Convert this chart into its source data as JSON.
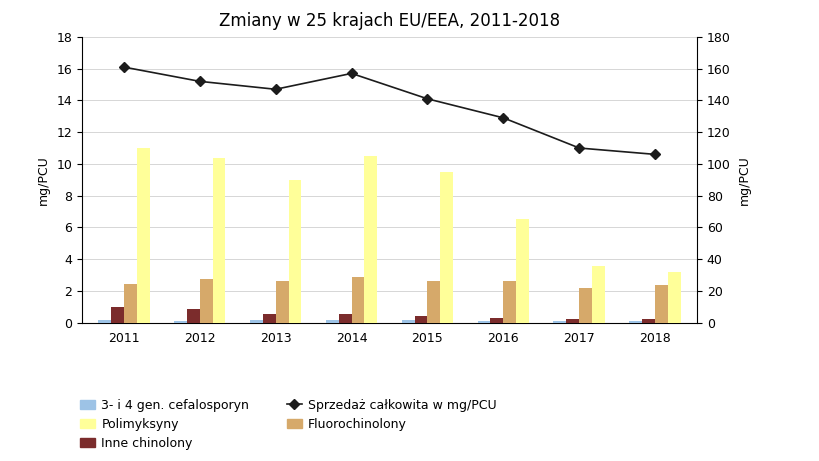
{
  "title": "Zmiany w 25 krajach EU/EEA, 2011-2018",
  "years": [
    2011,
    2012,
    2013,
    2014,
    2015,
    2016,
    2017,
    2018
  ],
  "cefalosporyn": [
    0.15,
    0.12,
    0.15,
    0.18,
    0.15,
    0.1,
    0.1,
    0.08
  ],
  "inne_chinolony": [
    1.0,
    0.85,
    0.55,
    0.55,
    0.4,
    0.3,
    0.25,
    0.22
  ],
  "fluorochinolony": [
    2.45,
    2.75,
    2.65,
    2.85,
    2.65,
    2.6,
    2.2,
    2.35
  ],
  "polimyksyny": [
    11.0,
    10.4,
    9.0,
    10.5,
    9.5,
    6.5,
    3.6,
    3.2
  ],
  "sprzedaz_calkowita": [
    161,
    152,
    147,
    157,
    141,
    129,
    110,
    106
  ],
  "bar_colors": {
    "cefalosporyn": "#9DC3E6",
    "inne_chinolony": "#7B2C2C",
    "fluorochinolony": "#D6A96A",
    "polimyksyny": "#FFFF99"
  },
  "line_color": "#1C1C1C",
  "ylabel_left": "mg/PCU",
  "ylabel_right": "mg/PCU",
  "ylim_left": [
    0,
    18
  ],
  "ylim_right": [
    0,
    180
  ],
  "yticks_left": [
    0,
    2,
    4,
    6,
    8,
    10,
    12,
    14,
    16,
    18
  ],
  "yticks_right": [
    0,
    20,
    40,
    60,
    80,
    100,
    120,
    140,
    160,
    180
  ],
  "background_color": "#FFFFFF",
  "title_fontsize": 12,
  "axis_fontsize": 9,
  "legend_fontsize": 9
}
